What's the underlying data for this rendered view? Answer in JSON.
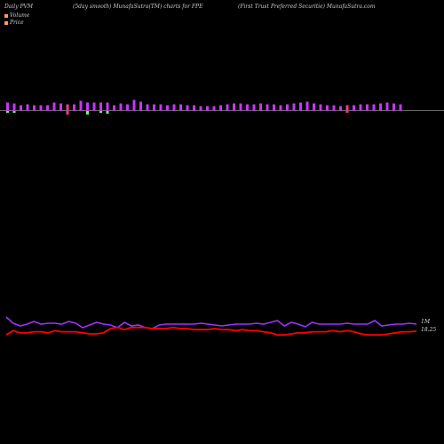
{
  "header": {
    "left": "Daily PVM",
    "mid1": "(5day smooth) MunafaSutra(TM) charts for FPE",
    "mid2": "(First Trust Preferred Securitie) MunafaSutra.com"
  },
  "legend": {
    "volume": "Volume",
    "price": "Price"
  },
  "labels": {
    "volume_tag": "1M",
    "price_tag": "18.25"
  },
  "colors": {
    "volume_up": "#cc33ff",
    "volume_down": "#66ff66",
    "down_bar": "#ff3399",
    "volume_line": "#9933ff",
    "price_line": "#ff0000",
    "baseline": "#cccccc",
    "volume_legend": "#ff9966",
    "price_legend": "#ff9966"
  },
  "chart_data": {
    "type": "bar",
    "bars": [
      {
        "up": 9,
        "down": 2,
        "c": "up"
      },
      {
        "up": 8,
        "down": 2,
        "c": "up"
      },
      {
        "up": 6,
        "down": 0,
        "c": "up"
      },
      {
        "up": 7,
        "down": 0,
        "c": "up"
      },
      {
        "up": 6,
        "down": 0,
        "c": "up"
      },
      {
        "up": 6,
        "down": 0,
        "c": "up"
      },
      {
        "up": 6,
        "down": 0,
        "c": "up"
      },
      {
        "up": 9,
        "down": 0,
        "c": "up"
      },
      {
        "up": 8,
        "down": 0,
        "c": "up"
      },
      {
        "up": 7,
        "down": 4,
        "c": "red"
      },
      {
        "up": 7,
        "down": 0,
        "c": "up"
      },
      {
        "up": 11,
        "down": 0,
        "c": "up"
      },
      {
        "up": 9,
        "down": 4,
        "c": "down"
      },
      {
        "up": 9,
        "down": 0,
        "c": "up"
      },
      {
        "up": 9,
        "down": 2,
        "c": "up"
      },
      {
        "up": 9,
        "down": 3,
        "c": "down"
      },
      {
        "up": 6,
        "down": 0,
        "c": "up"
      },
      {
        "up": 8,
        "down": 0,
        "c": "up"
      },
      {
        "up": 7,
        "down": 0,
        "c": "up"
      },
      {
        "up": 12,
        "down": 0,
        "c": "up"
      },
      {
        "up": 10,
        "down": 0,
        "c": "up"
      },
      {
        "up": 7,
        "down": 0,
        "c": "up"
      },
      {
        "up": 7,
        "down": 0,
        "c": "up"
      },
      {
        "up": 7,
        "down": 0,
        "c": "up"
      },
      {
        "up": 6,
        "down": 0,
        "c": "up"
      },
      {
        "up": 7,
        "down": 0,
        "c": "up"
      },
      {
        "up": 7,
        "down": 0,
        "c": "up"
      },
      {
        "up": 6,
        "down": 0,
        "c": "up"
      },
      {
        "up": 6,
        "down": 0,
        "c": "up"
      },
      {
        "up": 5,
        "down": 0,
        "c": "up"
      },
      {
        "up": 5,
        "down": 0,
        "c": "up"
      },
      {
        "up": 5,
        "down": 0,
        "c": "up"
      },
      {
        "up": 6,
        "down": 0,
        "c": "up"
      },
      {
        "up": 7,
        "down": 0,
        "c": "up"
      },
      {
        "up": 8,
        "down": 0,
        "c": "up"
      },
      {
        "up": 8,
        "down": 0,
        "c": "up"
      },
      {
        "up": 7,
        "down": 0,
        "c": "up"
      },
      {
        "up": 7,
        "down": 0,
        "c": "up"
      },
      {
        "up": 8,
        "down": 0,
        "c": "up"
      },
      {
        "up": 7,
        "down": 0,
        "c": "up"
      },
      {
        "up": 7,
        "down": 0,
        "c": "up"
      },
      {
        "up": 6,
        "down": 0,
        "c": "up"
      },
      {
        "up": 7,
        "down": 0,
        "c": "up"
      },
      {
        "up": 8,
        "down": 0,
        "c": "up"
      },
      {
        "up": 9,
        "down": 0,
        "c": "up"
      },
      {
        "up": 10,
        "down": 0,
        "c": "up"
      },
      {
        "up": 8,
        "down": 0,
        "c": "up"
      },
      {
        "up": 7,
        "down": 0,
        "c": "up"
      },
      {
        "up": 6,
        "down": 0,
        "c": "up"
      },
      {
        "up": 6,
        "down": 0,
        "c": "up"
      },
      {
        "up": 5,
        "down": 0,
        "c": "up"
      },
      {
        "up": 6,
        "down": 2,
        "c": "red"
      },
      {
        "up": 6,
        "down": 0,
        "c": "up"
      },
      {
        "up": 7,
        "down": 0,
        "c": "up"
      },
      {
        "up": 7,
        "down": 0,
        "c": "up"
      },
      {
        "up": 7,
        "down": 0,
        "c": "up"
      },
      {
        "up": 8,
        "down": 0,
        "c": "up"
      },
      {
        "up": 9,
        "down": 0,
        "c": "up"
      },
      {
        "up": 8,
        "down": 0,
        "c": "up"
      },
      {
        "up": 7,
        "down": 0,
        "c": "up"
      }
    ],
    "volume_line": [
      18,
      11,
      8,
      10,
      13,
      10,
      11,
      11,
      10,
      13,
      11,
      6,
      9,
      12,
      10,
      9,
      6,
      12,
      8,
      9,
      6,
      5,
      9,
      10,
      10,
      10,
      10,
      10,
      11,
      10,
      9,
      8,
      9,
      10,
      10,
      10,
      11,
      10,
      12,
      14,
      8,
      12,
      10,
      7,
      12,
      10,
      10,
      10,
      10,
      11,
      10,
      10,
      10,
      14,
      8,
      9,
      10,
      10,
      11,
      10
    ],
    "price_line": [
      17.9,
      18.3,
      18.1,
      18.1,
      18.2,
      18.2,
      18.1,
      18.3,
      18.2,
      18.2,
      18.2,
      18.1,
      18.0,
      18.0,
      18.1,
      18.5,
      18.6,
      18.4,
      18.6,
      18.6,
      18.6,
      18.5,
      18.5,
      18.5,
      18.6,
      18.5,
      18.5,
      18.4,
      18.4,
      18.4,
      18.5,
      18.4,
      18.4,
      18.3,
      18.4,
      18.3,
      18.3,
      18.2,
      18.1,
      17.9,
      17.9,
      18.0,
      18.1,
      18.1,
      18.2,
      18.2,
      18.2,
      18.3,
      18.2,
      18.3,
      18.2,
      18.0,
      17.9,
      17.9,
      17.9,
      18.0,
      18.1,
      18.2,
      18.2,
      18.25
    ]
  }
}
